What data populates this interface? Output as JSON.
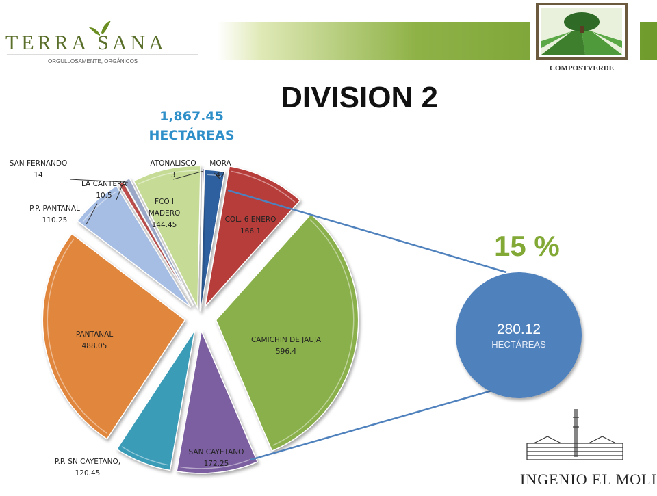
{
  "header": {
    "left_logo": {
      "name": "TERRA SANA",
      "tagline": "ORGULLOSAMENTE, ORGÁNICOS"
    },
    "right_logo": {
      "name": "COMPOSTVERDE"
    }
  },
  "title": "DIVISION 2",
  "total": {
    "value": "1,867.45",
    "unit": "HECTÁREAS"
  },
  "highlight": {
    "percent": "15 %",
    "value": "280.12",
    "unit": "HECTÁREAS"
  },
  "footer_logo": {
    "name": "INGENIO EL MOLINO"
  },
  "colors": {
    "mora": "#2f5f9e",
    "col6": "#b73c3a",
    "camichin": "#8ab04c",
    "sancayetano": "#7b5ea0",
    "ppsncayetano": "#3a9cb8",
    "pantanal": "#e0863e",
    "pppantanal": "#a6bde4",
    "lacantera": "#c0504d",
    "sanfernando": "#9aa7c7",
    "fcoimadero": "#c6dc96",
    "atonalisco": "#7b6fa5",
    "circle": "#4f81bd",
    "percent": "#82a935",
    "total": "#2f8fc9"
  },
  "chart_data": {
    "type": "pie",
    "exploded": true,
    "slices": [
      {
        "name": "MORA",
        "value": 42,
        "label": [
          "MORA",
          "42"
        ],
        "color": "#2f5f9e"
      },
      {
        "name": "COL. 6 ENERO",
        "value": 166.1,
        "label": [
          "COL. 6 ENERO",
          "166.1"
        ],
        "color": "#b73c3a"
      },
      {
        "name": "CAMICHIN DE JAUJA",
        "value": 596.4,
        "label": [
          "CAMICHIN DE JAUJA",
          "596.4"
        ],
        "color": "#8ab04c"
      },
      {
        "name": "SAN CAYETANO",
        "value": 172.25,
        "label": [
          "SAN CAYETANO",
          "172.25"
        ],
        "color": "#7b5ea0"
      },
      {
        "name": "P.P. SN CAYETANO",
        "value": 120.45,
        "label": [
          "P.P. SN CAYETANO,",
          "120.45"
        ],
        "color": "#3a9cb8"
      },
      {
        "name": "PANTANAL",
        "value": 488.05,
        "label": [
          "PANTANAL",
          "488.05"
        ],
        "color": "#e0863e"
      },
      {
        "name": "P.P. PANTANAL",
        "value": 110.25,
        "label": [
          "P.P. PANTANAL",
          "110.25"
        ],
        "color": "#a6bde4"
      },
      {
        "name": "LA CANTERA",
        "value": 10.5,
        "label": [
          "LA CANTERA",
          "10.5"
        ],
        "color": "#c0504d"
      },
      {
        "name": "SAN FERNANDO",
        "value": 14,
        "label": [
          "SAN FERNANDO",
          "14"
        ],
        "color": "#9aa7c7"
      },
      {
        "name": "FCO I MADERO",
        "value": 144.45,
        "label": [
          "FCO I",
          "MADERO",
          "144.45"
        ],
        "color": "#c6dc96"
      },
      {
        "name": "ATONALISCO",
        "value": 3,
        "label": [
          "ATONALISCO",
          "3"
        ],
        "color": "#7b6fa5"
      }
    ]
  }
}
